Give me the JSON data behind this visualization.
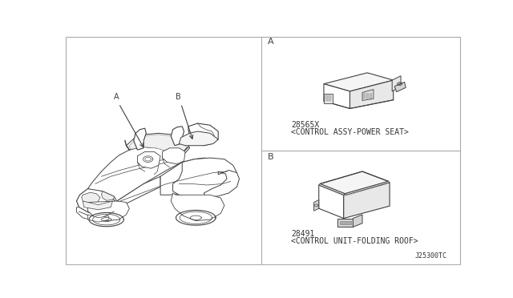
{
  "bg_color": "#ffffff",
  "line_color": "#404040",
  "divider_color": "#999999",
  "text_color": "#333333",
  "label_A": "A",
  "label_B": "B",
  "part_A_number": "28565X",
  "part_A_desc": "<CONTROL ASSY-POWER SEAT>",
  "part_B_number": "28491",
  "part_B_desc": "<CONTROL UNIT-FOLDING ROOF>",
  "diagram_code": "J25300TC",
  "border_color": "#aaaaaa",
  "face_light": "#f5f5f5",
  "face_mid": "#e8e8e8",
  "face_dark": "#d5d5d5"
}
